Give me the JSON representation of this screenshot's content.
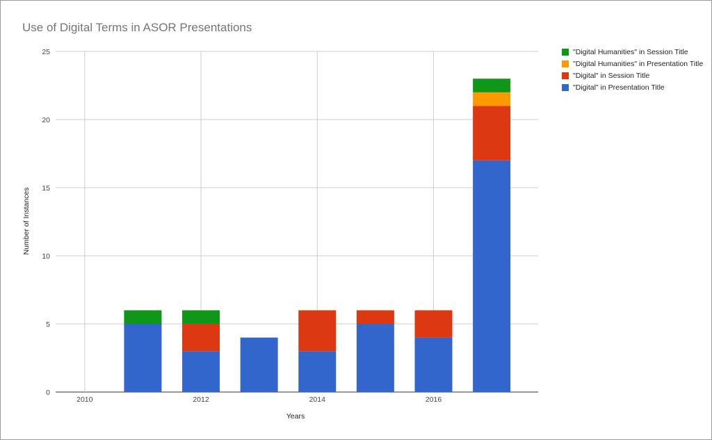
{
  "chart_data": {
    "type": "bar",
    "stacked": true,
    "title": "Use of Digital Terms in ASOR Presentations",
    "xlabel": "Years",
    "ylabel": "Number of Instances",
    "categories": [
      2010,
      2011,
      2012,
      2013,
      2014,
      2015,
      2016,
      2017
    ],
    "x_tick_labels": [
      "2010",
      "2012",
      "2014",
      "2016"
    ],
    "x_tick_values": [
      2010,
      2012,
      2014,
      2016
    ],
    "ylim": [
      0,
      25
    ],
    "y_ticks": [
      0,
      5,
      10,
      15,
      20,
      25
    ],
    "grid": true,
    "legend_position": "right",
    "series": [
      {
        "name": "\"Digital\" in Presentation Title",
        "color": "#3366cc",
        "values": [
          0,
          5,
          3,
          4,
          3,
          5,
          4,
          17
        ]
      },
      {
        "name": "\"Digital\" in Session Title",
        "color": "#dc3912",
        "values": [
          0,
          0,
          2,
          0,
          3,
          1,
          2,
          4
        ]
      },
      {
        "name": "\"Digital Humanities\" in Presentation Title",
        "color": "#ff9900",
        "values": [
          0,
          0,
          0,
          0,
          0,
          0,
          0,
          1
        ]
      },
      {
        "name": "\"Digital Humanities\" in Session Title",
        "color": "#109618",
        "values": [
          0,
          1,
          1,
          0,
          0,
          0,
          0,
          1
        ]
      }
    ]
  }
}
